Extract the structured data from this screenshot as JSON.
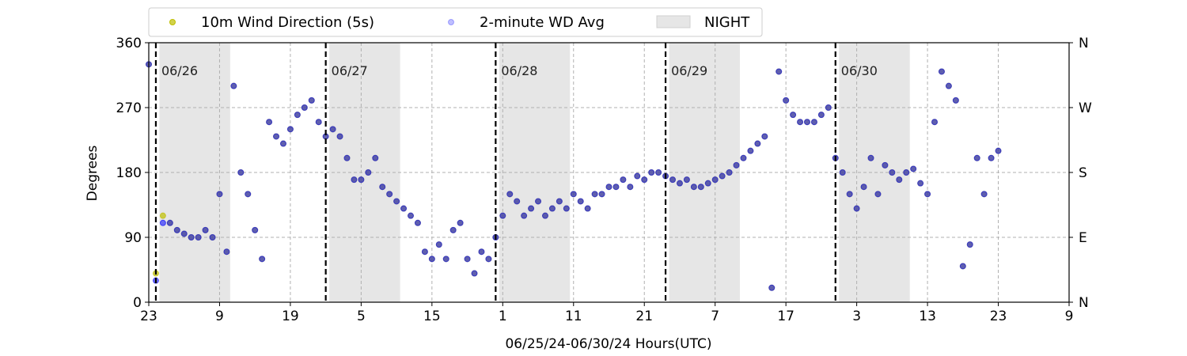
{
  "chart_data": {
    "type": "scatter",
    "title": "",
    "xlabel": "06/25/24-06/30/24  Hours(UTC)",
    "ylabel": "Degrees",
    "x_unit": "hours since 06/25/24 23:00 UTC",
    "xlim": [
      0,
      130
    ],
    "ylim": [
      0,
      360
    ],
    "x_ticks": [
      0,
      10,
      20,
      30,
      40,
      50,
      60,
      70,
      80,
      90,
      100,
      110,
      120,
      130
    ],
    "x_tick_labels": [
      "23",
      "9",
      "19",
      "5",
      "15",
      "1",
      "11",
      "21",
      "7",
      "17",
      "3",
      "13",
      "23",
      "9"
    ],
    "y_ticks": [
      0,
      90,
      180,
      270,
      360
    ],
    "y_tick_labels": [
      "0",
      "90",
      "180",
      "270",
      "360"
    ],
    "y2_tick_labels": [
      "N",
      "E",
      "S",
      "W",
      "N"
    ],
    "grid": true,
    "legend_position": "top-left, above plot",
    "legend": [
      {
        "label": "10m Wind Direction (5s)",
        "color": "#bfbf00",
        "kind": "marker"
      },
      {
        "label": "2-minute WD Avg",
        "color": "#0000ff",
        "kind": "marker"
      },
      {
        "label": "NIGHT",
        "color": "#e6e6e6",
        "kind": "patch"
      }
    ],
    "day_markers": [
      {
        "x": 1,
        "label": "06/26"
      },
      {
        "x": 25,
        "label": "06/27"
      },
      {
        "x": 49,
        "label": "06/28"
      },
      {
        "x": 73,
        "label": "06/29"
      },
      {
        "x": 97,
        "label": "06/30"
      }
    ],
    "night_periods": [
      [
        1.5,
        11.5
      ],
      [
        25.5,
        35.5
      ],
      [
        49.5,
        59.5
      ],
      [
        73.5,
        83.5
      ],
      [
        97.5,
        107.5
      ]
    ],
    "series": [
      {
        "name": "10m Wind Direction (5s)",
        "color": "#bfbf00",
        "x": [
          0,
          1,
          2,
          3,
          4,
          5,
          6,
          7,
          8,
          9,
          10,
          11,
          12,
          13,
          14,
          15,
          16,
          17,
          18,
          19,
          20,
          21,
          22,
          23,
          24,
          25,
          26,
          27,
          28,
          29,
          30,
          31,
          32,
          33,
          34,
          35,
          36,
          37,
          38,
          39,
          40,
          41,
          42,
          43,
          44,
          45,
          46,
          47,
          48,
          49,
          50,
          51,
          52,
          53,
          54,
          55,
          56,
          57,
          58,
          59,
          60,
          61,
          62,
          63,
          64,
          65,
          66,
          67,
          68,
          69,
          70,
          71,
          72,
          73,
          74,
          75,
          76,
          77,
          78,
          79,
          80,
          81,
          82,
          83,
          84,
          85,
          86,
          87,
          88,
          89,
          90,
          91,
          92,
          93,
          94,
          95,
          96,
          97,
          98,
          99,
          100,
          101,
          102,
          103,
          104,
          105,
          106,
          107,
          108,
          109,
          110,
          111,
          112,
          113,
          114,
          115,
          116,
          117,
          118,
          119,
          120
        ],
        "y": [
          330,
          40,
          120,
          110,
          100,
          95,
          90,
          90,
          100,
          90,
          150,
          70,
          300,
          180,
          150,
          100,
          60,
          250,
          230,
          220,
          240,
          260,
          270,
          280,
          250,
          230,
          240,
          230,
          200,
          170,
          170,
          180,
          200,
          160,
          150,
          140,
          130,
          120,
          110,
          70,
          60,
          80,
          60,
          100,
          110,
          60,
          40,
          70,
          60,
          90,
          120,
          150,
          140,
          120,
          130,
          140,
          120,
          130,
          140,
          130,
          150,
          140,
          130,
          150,
          150,
          160,
          160,
          170,
          160,
          175,
          170,
          180,
          180,
          175,
          170,
          165,
          170,
          160,
          160,
          165,
          170,
          175,
          180,
          190,
          200,
          210,
          220,
          230,
          20,
          320,
          280,
          260,
          250,
          250,
          250,
          260,
          270,
          200,
          180,
          150,
          130,
          160,
          200,
          150,
          190,
          180,
          170,
          180,
          185,
          165,
          150,
          250,
          320,
          300,
          280,
          50,
          80,
          200,
          150,
          200,
          210
        ]
      },
      {
        "name": "2-minute WD Avg",
        "color": "#0000ff",
        "x": [
          0,
          1,
          2,
          3,
          4,
          5,
          6,
          7,
          8,
          9,
          10,
          11,
          12,
          13,
          14,
          15,
          16,
          17,
          18,
          19,
          20,
          21,
          22,
          23,
          24,
          25,
          26,
          27,
          28,
          29,
          30,
          31,
          32,
          33,
          34,
          35,
          36,
          37,
          38,
          39,
          40,
          41,
          42,
          43,
          44,
          45,
          46,
          47,
          48,
          49,
          50,
          51,
          52,
          53,
          54,
          55,
          56,
          57,
          58,
          59,
          60,
          61,
          62,
          63,
          64,
          65,
          66,
          67,
          68,
          69,
          70,
          71,
          72,
          73,
          74,
          75,
          76,
          77,
          78,
          79,
          80,
          81,
          82,
          83,
          84,
          85,
          86,
          87,
          88,
          89,
          90,
          91,
          92,
          93,
          94,
          95,
          96,
          97,
          98,
          99,
          100,
          101,
          102,
          103,
          104,
          105,
          106,
          107,
          108,
          109,
          110,
          111,
          112,
          113,
          114,
          115,
          116,
          117,
          118,
          119,
          120
        ],
        "y": [
          330,
          30,
          110,
          110,
          100,
          95,
          90,
          90,
          100,
          90,
          150,
          70,
          300,
          180,
          150,
          100,
          60,
          250,
          230,
          220,
          240,
          260,
          270,
          280,
          250,
          230,
          240,
          230,
          200,
          170,
          170,
          180,
          200,
          160,
          150,
          140,
          130,
          120,
          110,
          70,
          60,
          80,
          60,
          100,
          110,
          60,
          40,
          70,
          60,
          90,
          120,
          150,
          140,
          120,
          130,
          140,
          120,
          130,
          140,
          130,
          150,
          140,
          130,
          150,
          150,
          160,
          160,
          170,
          160,
          175,
          170,
          180,
          180,
          175,
          170,
          165,
          170,
          160,
          160,
          165,
          170,
          175,
          180,
          190,
          200,
          210,
          220,
          230,
          20,
          320,
          280,
          260,
          250,
          250,
          250,
          260,
          270,
          200,
          180,
          150,
          130,
          160,
          200,
          150,
          190,
          180,
          170,
          180,
          185,
          165,
          150,
          250,
          320,
          300,
          280,
          50,
          80,
          200,
          150,
          200,
          210
        ]
      }
    ]
  }
}
